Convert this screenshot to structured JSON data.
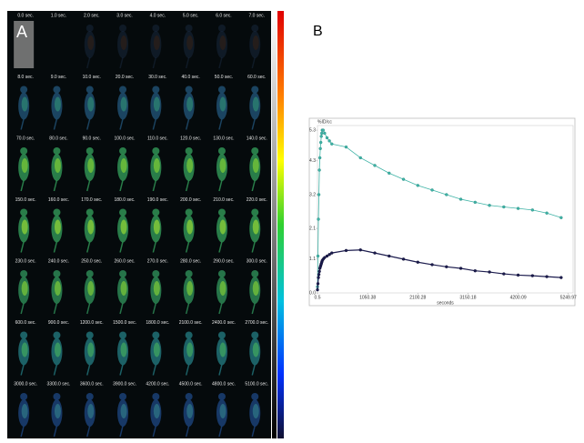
{
  "panels": {
    "a_label": "A",
    "b_label": "B"
  },
  "frames": {
    "rows": [
      [
        "0.0 sec.",
        "1.0 sec.",
        "2.0 sec.",
        "3.0 sec.",
        "4.0 sec.",
        "5.0 sec.",
        "6.0 sec.",
        "7.0 sec."
      ],
      [
        "8.0 sec.",
        "9.0 sec.",
        "10.0 sec.",
        "20.0 sec.",
        "30.0 sec.",
        "40.0 sec.",
        "50.0 sec.",
        "60.0 sec."
      ],
      [
        "70.0 sec.",
        "80.0 sec.",
        "90.0 sec.",
        "100.0 sec.",
        "110.0 sec.",
        "120.0 sec.",
        "130.0 sec.",
        "140.0 sec."
      ],
      [
        "150.0 sec.",
        "160.0 sec.",
        "170.0 sec.",
        "180.0 sec.",
        "190.0 sec.",
        "200.0 sec.",
        "210.0 sec.",
        "220.0 sec."
      ],
      [
        "230.0 sec.",
        "240.0 sec.",
        "250.0 sec.",
        "260.0 sec.",
        "270.0 sec.",
        "280.0 sec.",
        "290.0 sec.",
        "300.0 sec."
      ],
      [
        "600.0 sec.",
        "900.0 sec.",
        "1200.0 sec.",
        "1500.0 sec.",
        "1800.0 sec.",
        "2100.0 sec.",
        "2400.0 sec.",
        "2700.0 sec."
      ],
      [
        "3000.0 sec.",
        "3300.0 sec.",
        "3600.0 sec.",
        "3900.0 sec.",
        "4200.0 sec.",
        "4500.0 sec.",
        "4800.0 sec.",
        "5100.0 sec."
      ]
    ]
  },
  "chart_data": {
    "type": "line",
    "y_label": "%ID/cc",
    "x_label": "seconds",
    "x": [
      0,
      10,
      20,
      30,
      40,
      50,
      60,
      70,
      80,
      90,
      100,
      120,
      150,
      200,
      250,
      300,
      600,
      900,
      1200,
      1500,
      1800,
      2100,
      2400,
      2700,
      3000,
      3300,
      3600,
      3900,
      4200,
      4500,
      4800,
      5100
    ],
    "series": [
      {
        "color": "#3fb3a6",
        "values": [
          0.2,
          1.2,
          2.4,
          3.2,
          4.0,
          4.4,
          4.7,
          4.9,
          5.1,
          5.2,
          5.3,
          5.3,
          5.2,
          5.05,
          4.95,
          4.85,
          4.75,
          4.4,
          4.15,
          3.9,
          3.7,
          3.5,
          3.35,
          3.2,
          3.05,
          2.95,
          2.85,
          2.8,
          2.75,
          2.7,
          2.6,
          2.45
        ]
      },
      {
        "color": "#1c1c4e",
        "values": [
          0.1,
          0.3,
          0.5,
          0.6,
          0.7,
          0.8,
          0.85,
          0.9,
          0.95,
          1.0,
          1.05,
          1.1,
          1.15,
          1.2,
          1.25,
          1.3,
          1.38,
          1.4,
          1.3,
          1.2,
          1.1,
          1.0,
          0.92,
          0.85,
          0.8,
          0.72,
          0.68,
          0.62,
          0.58,
          0.56,
          0.53,
          0.5
        ]
      }
    ],
    "xlim": [
      0,
      5350
    ],
    "xticks": [
      0.5,
      1050.38,
      2100.28,
      3150.18,
      4200.09,
      5249.97
    ],
    "ylim": [
      0,
      5.45
    ],
    "yticks": [
      {
        "value": 0,
        "label": "0.0"
      },
      1.1,
      2.1,
      3.2,
      4.3,
      5.3
    ],
    "grid": false
  }
}
